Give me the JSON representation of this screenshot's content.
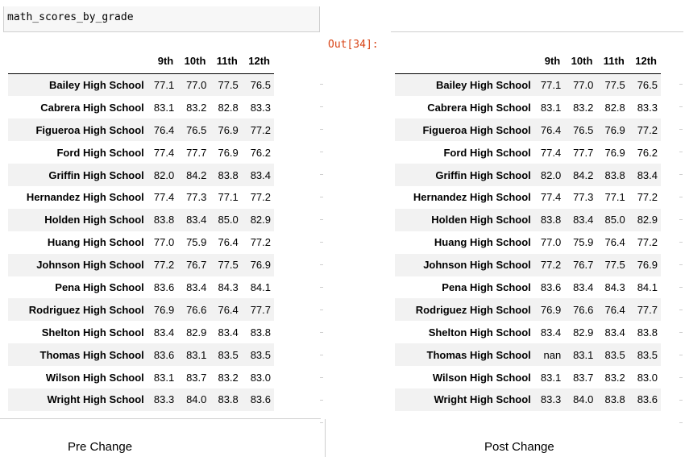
{
  "left": {
    "code_text": "math_scores_by_grade",
    "caption": "Pre Change",
    "columns": [
      "9th",
      "10th",
      "11th",
      "12th"
    ],
    "rows": [
      {
        "school": "Bailey High School",
        "values": [
          "77.1",
          "77.0",
          "77.5",
          "76.5"
        ]
      },
      {
        "school": "Cabrera High School",
        "values": [
          "83.1",
          "83.2",
          "82.8",
          "83.3"
        ]
      },
      {
        "school": "Figueroa High School",
        "values": [
          "76.4",
          "76.5",
          "76.9",
          "77.2"
        ]
      },
      {
        "school": "Ford High School",
        "values": [
          "77.4",
          "77.7",
          "76.9",
          "76.2"
        ]
      },
      {
        "school": "Griffin High School",
        "values": [
          "82.0",
          "84.2",
          "83.8",
          "83.4"
        ]
      },
      {
        "school": "Hernandez High School",
        "values": [
          "77.4",
          "77.3",
          "77.1",
          "77.2"
        ]
      },
      {
        "school": "Holden High School",
        "values": [
          "83.8",
          "83.4",
          "85.0",
          "82.9"
        ]
      },
      {
        "school": "Huang High School",
        "values": [
          "77.0",
          "75.9",
          "76.4",
          "77.2"
        ]
      },
      {
        "school": "Johnson High School",
        "values": [
          "77.2",
          "76.7",
          "77.5",
          "76.9"
        ]
      },
      {
        "school": "Pena High School",
        "values": [
          "83.6",
          "83.4",
          "84.3",
          "84.1"
        ]
      },
      {
        "school": "Rodriguez High School",
        "values": [
          "76.9",
          "76.6",
          "76.4",
          "77.7"
        ]
      },
      {
        "school": "Shelton High School",
        "values": [
          "83.4",
          "82.9",
          "83.4",
          "83.8"
        ]
      },
      {
        "school": "Thomas High School",
        "values": [
          "83.6",
          "83.1",
          "83.5",
          "83.5"
        ]
      },
      {
        "school": "Wilson High School",
        "values": [
          "83.1",
          "83.7",
          "83.2",
          "83.0"
        ]
      },
      {
        "school": "Wright High School",
        "values": [
          "83.3",
          "84.0",
          "83.8",
          "83.6"
        ]
      }
    ]
  },
  "right": {
    "out_prompt": "Out[34]:",
    "caption": "Post Change",
    "columns": [
      "9th",
      "10th",
      "11th",
      "12th"
    ],
    "rows": [
      {
        "school": "Bailey High School",
        "values": [
          "77.1",
          "77.0",
          "77.5",
          "76.5"
        ]
      },
      {
        "school": "Cabrera High School",
        "values": [
          "83.1",
          "83.2",
          "82.8",
          "83.3"
        ]
      },
      {
        "school": "Figueroa High School",
        "values": [
          "76.4",
          "76.5",
          "76.9",
          "77.2"
        ]
      },
      {
        "school": "Ford High School",
        "values": [
          "77.4",
          "77.7",
          "76.9",
          "76.2"
        ]
      },
      {
        "school": "Griffin High School",
        "values": [
          "82.0",
          "84.2",
          "83.8",
          "83.4"
        ]
      },
      {
        "school": "Hernandez High School",
        "values": [
          "77.4",
          "77.3",
          "77.1",
          "77.2"
        ]
      },
      {
        "school": "Holden High School",
        "values": [
          "83.8",
          "83.4",
          "85.0",
          "82.9"
        ]
      },
      {
        "school": "Huang High School",
        "values": [
          "77.0",
          "75.9",
          "76.4",
          "77.2"
        ]
      },
      {
        "school": "Johnson High School",
        "values": [
          "77.2",
          "76.7",
          "77.5",
          "76.9"
        ]
      },
      {
        "school": "Pena High School",
        "values": [
          "83.6",
          "83.4",
          "84.3",
          "84.1"
        ]
      },
      {
        "school": "Rodriguez High School",
        "values": [
          "76.9",
          "76.6",
          "76.4",
          "77.7"
        ]
      },
      {
        "school": "Shelton High School",
        "values": [
          "83.4",
          "82.9",
          "83.4",
          "83.8"
        ]
      },
      {
        "school": "Thomas High School",
        "values": [
          "nan",
          "83.1",
          "83.5",
          "83.5"
        ]
      },
      {
        "school": "Wilson High School",
        "values": [
          "83.1",
          "83.7",
          "83.2",
          "83.0"
        ]
      },
      {
        "school": "Wright High School",
        "values": [
          "83.3",
          "84.0",
          "83.8",
          "83.6"
        ]
      }
    ]
  }
}
